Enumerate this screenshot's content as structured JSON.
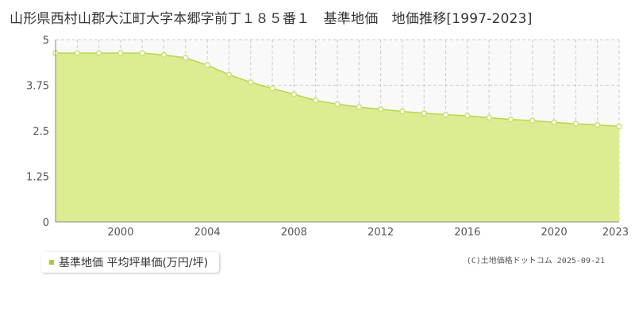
{
  "title": "山形県西村山郡大江町大字本郷字前丁１８５番１　基準地価　地価推移[1997-2023]",
  "legend_label": "基準地価 平均坪単価(万円/坪)",
  "copyright": "(C)土地価格ドットコム 2025-09-21",
  "colors": {
    "area_fill": "#dcec93",
    "line": "#b5d84b",
    "marker_stroke": "#c7e26e",
    "marker_fill": "#ffffff",
    "plot_bg": "#f9f9f9",
    "grid": "#cccccc",
    "legend_swatch": "#a7cf3c"
  },
  "chart_data": {
    "type": "area",
    "x": [
      1997,
      1998,
      1999,
      2000,
      2001,
      2002,
      2003,
      2004,
      2005,
      2006,
      2007,
      2008,
      2009,
      2010,
      2011,
      2012,
      2013,
      2014,
      2015,
      2016,
      2017,
      2018,
      2019,
      2020,
      2021,
      2022,
      2023
    ],
    "series": [
      {
        "name": "基準地価 平均坪単価(万円/坪)",
        "values": [
          4.63,
          4.63,
          4.63,
          4.63,
          4.63,
          4.58,
          4.5,
          4.3,
          4.04,
          3.83,
          3.66,
          3.5,
          3.33,
          3.23,
          3.15,
          3.09,
          3.03,
          2.98,
          2.94,
          2.91,
          2.86,
          2.81,
          2.78,
          2.73,
          2.69,
          2.66,
          2.62
        ]
      }
    ],
    "xlim": [
      1997,
      2023
    ],
    "ylim": [
      0,
      5
    ],
    "x_ticks": [
      "2000",
      "2004",
      "2008",
      "2012",
      "2016",
      "2020",
      "2023"
    ],
    "x_tick_values": [
      2000,
      2004,
      2008,
      2012,
      2016,
      2020,
      2023
    ],
    "y_ticks": [
      "0",
      "1.25",
      "2.5",
      "3.75",
      "5"
    ],
    "y_tick_values": [
      0,
      1.25,
      2.5,
      3.75,
      5
    ],
    "grid": true
  }
}
